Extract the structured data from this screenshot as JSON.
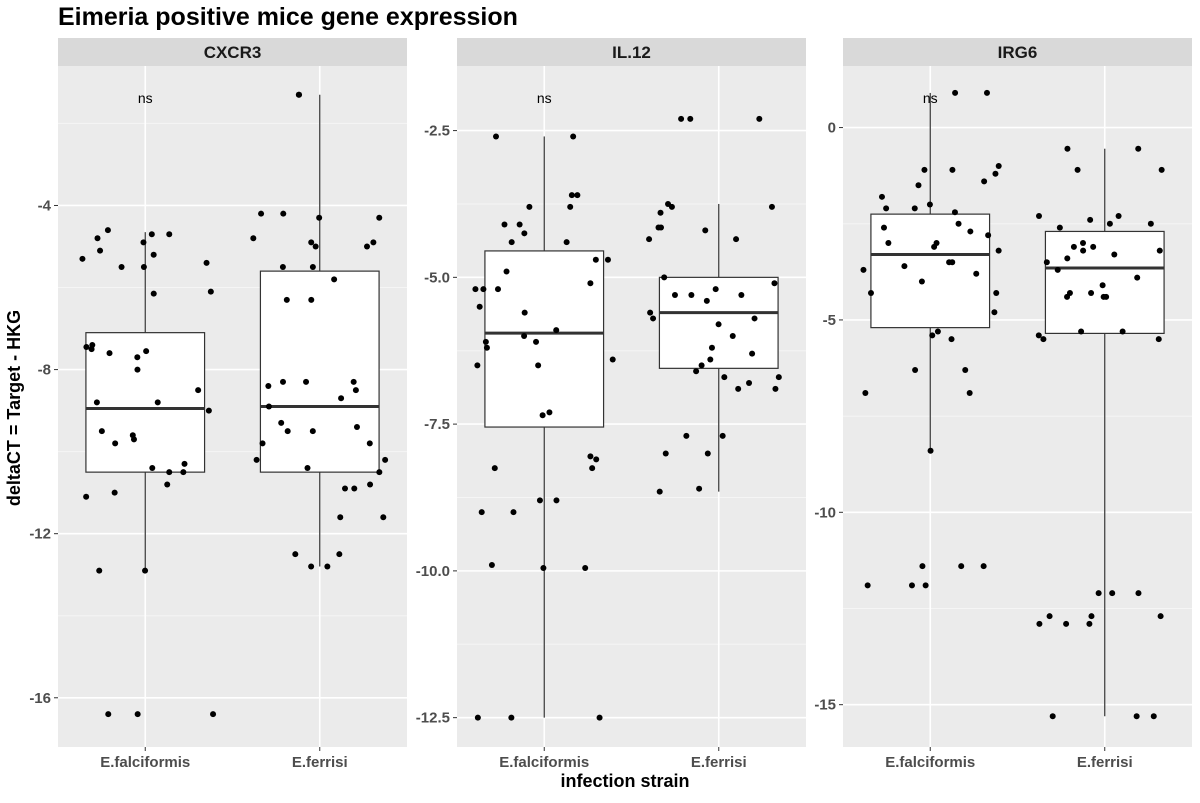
{
  "chart_data": {
    "type": "boxplot-jitter",
    "title": "Eimeria positive mice gene expression",
    "xlabel": "infection strain",
    "ylabel": "deltaCT = Target - HKG",
    "categories": [
      "E.falciformis",
      "E.ferrisi"
    ],
    "facets": [
      {
        "name": "CXCR3",
        "ylim": [
          -17.2,
          -0.6
        ],
        "yticks": [
          -16,
          -12,
          -8,
          -4
        ],
        "ytick_labels": [
          "-16",
          "-12",
          "-8",
          "-4"
        ],
        "annotation": "ns",
        "boxes": [
          {
            "category": "E.falciformis",
            "q1": -10.5,
            "median": -8.95,
            "q3": -7.1,
            "whisker_low": -12.9,
            "whisker_high": -4.65
          },
          {
            "category": "E.ferrisi",
            "q1": -10.5,
            "median": -8.9,
            "q3": -5.6,
            "whisker_low": -12.8,
            "whisker_high": -1.3
          }
        ],
        "points": [
          {
            "category": "E.falciformis",
            "values": [
              -5.5,
              -6.15,
              -7.5,
              -7.6,
              -7.7,
              -7.55,
              -7.45,
              -8.5,
              -8.8,
              -9.6,
              -9.8,
              -10.3,
              -10.8,
              -11.1,
              -12.9,
              -16.4,
              -4.7,
              -4.8,
              -5.2,
              -4.9,
              -5.1,
              -5.3,
              -5.4,
              -6.1,
              -7.4,
              -8.0,
              -9.0,
              -9.5,
              -9.7,
              -10.4,
              -10.5,
              -11.0,
              -12.9,
              -16.4,
              -16.4,
              -4.6,
              -4.7,
              -5.5,
              -8.8,
              -10.5
            ]
          },
          {
            "category": "E.ferrisi",
            "values": [
              -1.3,
              -1.3,
              -4.2,
              -4.3,
              -4.2,
              -4.9,
              -5.0,
              -5.5,
              -5.8,
              -8.3,
              -8.5,
              -8.7,
              -8.9,
              -9.3,
              -9.5,
              -9.8,
              -10.2,
              -10.4,
              -10.9,
              -11.6,
              -11.6,
              -12.5,
              -12.8,
              -4.3,
              -4.9,
              -5.0,
              -5.5,
              -6.3,
              -6.3,
              -8.3,
              -8.3,
              -8.4,
              -9.5,
              -9.4,
              -9.8,
              -10.2,
              -10.5,
              -10.8,
              -10.9,
              -12.5,
              -12.8,
              -4.8
            ]
          }
        ]
      },
      {
        "name": "IL.12",
        "ylim": [
          -13.0,
          -1.4
        ],
        "yticks": [
          -12.5,
          -10.0,
          -7.5,
          -5.0,
          -2.5
        ],
        "ytick_labels": [
          "-12.5",
          "-10.0",
          "-7.5",
          "-5.0",
          "-2.5"
        ],
        "annotation": "ns",
        "boxes": [
          {
            "category": "E.falciformis",
            "q1": -7.55,
            "median": -5.95,
            "q3": -4.55,
            "whisker_low": -12.5,
            "whisker_high": -2.6
          },
          {
            "category": "E.ferrisi",
            "q1": -6.55,
            "median": -5.6,
            "q3": -5.0,
            "whisker_low": -8.65,
            "whisker_high": -3.75
          }
        ],
        "points": [
          {
            "category": "E.falciformis",
            "values": [
              -4.1,
              -4.25,
              -4.1,
              -3.8,
              -3.8,
              -3.6,
              -4.4,
              -4.7,
              -5.2,
              -5.6,
              -5.9,
              -6.1,
              -6.2,
              -6.4,
              -6.5,
              -8.1,
              -8.8,
              -8.8,
              -9.9,
              -9.95,
              -12.5,
              -12.5,
              -12.5,
              -2.6,
              -2.6,
              -3.6,
              -4.4,
              -4.7,
              -4.9,
              -5.1,
              -5.2,
              -5.5,
              -6.1,
              -6.5,
              -7.3,
              -8.05,
              -8.25,
              -8.25,
              -9.95,
              -9.0,
              -9.0,
              -7.35,
              -5.2,
              -6.0
            ]
          },
          {
            "category": "E.ferrisi",
            "values": [
              -2.3,
              -2.3,
              -2.3,
              -3.75,
              -3.8,
              -4.35,
              -4.35,
              -4.15,
              -4.2,
              -5.0,
              -5.2,
              -5.4,
              -5.6,
              -5.7,
              -6.2,
              -6.3,
              -6.6,
              -6.7,
              -6.8,
              -6.9,
              -7.7,
              -8.6,
              -8.65,
              -3.8,
              -3.9,
              -4.15,
              -5.3,
              -5.3,
              -5.7,
              -6.0,
              -6.4,
              -6.5,
              -6.7,
              -6.9,
              -7.7,
              -8.0,
              -8.0,
              -5.1,
              -5.3,
              -5.8
            ]
          }
        ]
      },
      {
        "name": "IRG6",
        "ylim": [
          -16.1,
          1.6
        ],
        "yticks": [
          -15,
          -10,
          -5,
          0
        ],
        "ytick_labels": [
          "-15",
          "-10",
          "-5",
          "0"
        ],
        "annotation": "ns",
        "boxes": [
          {
            "category": "E.falciformis",
            "q1": -5.2,
            "median": -3.3,
            "q3": -2.25,
            "whisker_low": -8.35,
            "whisker_high": 0.9
          },
          {
            "category": "E.ferrisi",
            "q1": -5.35,
            "median": -3.65,
            "q3": -2.7,
            "whisker_low": -15.3,
            "whisker_high": -0.55
          }
        ],
        "points": [
          {
            "category": "E.falciformis",
            "values": [
              0.9,
              0.9,
              -1.1,
              -1.2,
              -1.4,
              -1.5,
              -2.0,
              -2.5,
              -2.7,
              -2.8,
              -3.0,
              -3.2,
              -3.5,
              -3.8,
              -4.0,
              -4.3,
              -4.3,
              -5.3,
              -5.5,
              -6.3,
              -6.3,
              -6.9,
              -8.4,
              -11.4,
              -11.4,
              -11.4,
              -11.9,
              -11.9,
              -11.9,
              -1.0,
              -1.1,
              -1.8,
              -2.2,
              -2.6,
              -3.0,
              -3.1,
              -3.6,
              -3.7,
              -4.8,
              -5.4,
              -6.9,
              -2.1,
              -2.1,
              -3.5
            ]
          },
          {
            "category": "E.ferrisi",
            "values": [
              -0.55,
              -0.55,
              -1.1,
              -1.1,
              -2.3,
              -2.4,
              -2.5,
              -2.6,
              -3.0,
              -3.1,
              -3.2,
              -3.3,
              -3.5,
              -3.7,
              -4.1,
              -4.3,
              -4.3,
              -4.4,
              -5.3,
              -5.4,
              -5.5,
              -12.1,
              -12.1,
              -12.1,
              -12.7,
              -12.7,
              -12.7,
              -12.9,
              -12.9,
              -12.9,
              -15.3,
              -15.3,
              -15.3,
              -2.3,
              -2.5,
              -3.1,
              -3.2,
              -3.4,
              -3.9,
              -4.4,
              -4.4,
              -5.3,
              -5.5
            ]
          }
        ]
      }
    ]
  }
}
